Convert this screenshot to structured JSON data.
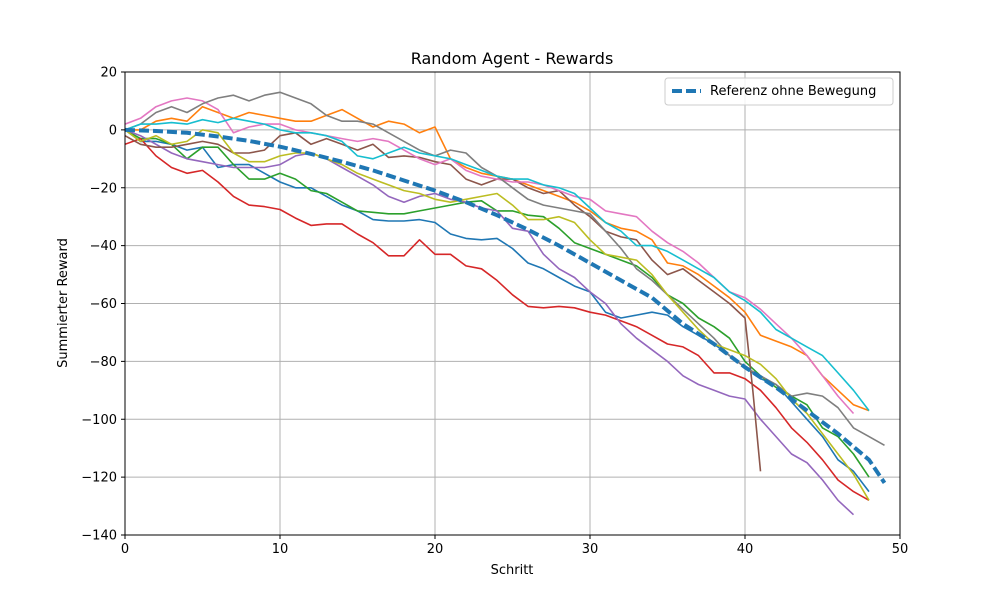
{
  "chart_data": {
    "type": "line",
    "title": "Random Agent - Rewards",
    "xlabel": "Schritt",
    "ylabel": "Summierter Reward",
    "xlim": [
      0,
      50
    ],
    "ylim": [
      -140,
      20
    ],
    "xticks": [
      0,
      10,
      20,
      30,
      40,
      50
    ],
    "yticks": [
      20,
      0,
      -20,
      -40,
      -60,
      -80,
      -100,
      -120,
      -140
    ],
    "grid": true,
    "legend": {
      "position": "top-right",
      "entries": [
        "Referenz ohne Bewegung"
      ]
    },
    "reference": {
      "name": "Referenz ohne Bewegung",
      "color": "#1f77b4",
      "style": "dashed",
      "x": [
        0,
        2,
        4,
        6,
        8,
        10,
        12,
        14,
        16,
        18,
        20,
        22,
        24,
        26,
        28,
        30,
        32,
        34,
        36,
        38,
        40,
        42,
        44,
        46,
        48,
        49
      ],
      "y": [
        0,
        -0.4,
        -1,
        -2.3,
        -3.8,
        -5.8,
        -8.3,
        -11,
        -14,
        -17.5,
        -21,
        -25,
        -29.5,
        -34.5,
        -40,
        -46,
        -52,
        -58,
        -67,
        -74,
        -82,
        -89,
        -97,
        -105,
        -114,
        -122
      ]
    },
    "series": [
      {
        "color": "#1f77b4",
        "x": [
          0,
          1,
          2,
          3,
          4,
          5,
          6,
          7,
          8,
          9,
          10,
          11,
          12,
          13,
          14,
          15,
          16,
          17,
          18,
          19,
          20,
          21,
          22,
          23,
          24,
          25,
          26,
          27,
          28,
          29,
          30,
          31,
          32,
          33,
          34,
          35,
          36,
          37,
          38,
          39,
          40,
          41,
          42,
          43,
          44,
          45,
          46,
          47,
          48
        ],
        "y": [
          0,
          -4,
          -4,
          -5,
          -7,
          -6,
          -13,
          -12,
          -12,
          -15,
          -18,
          -20,
          -20,
          -23,
          -26,
          -28,
          -31,
          -31.5,
          -31.5,
          -31,
          -32,
          -36,
          -37.5,
          -38,
          -37.5,
          -41,
          -46,
          -48,
          -51,
          -54,
          -56,
          -63,
          -65,
          -64,
          -63,
          -64,
          -68,
          -71,
          -74,
          -78,
          -82,
          -86,
          -88,
          -94,
          -100,
          -106,
          -114,
          -118,
          -125
        ]
      },
      {
        "color": "#ff7f0e",
        "x": [
          0,
          1,
          2,
          3,
          4,
          5,
          6,
          7,
          8,
          9,
          10,
          11,
          12,
          13,
          14,
          15,
          16,
          17,
          18,
          19,
          20,
          21,
          22,
          23,
          24,
          25,
          26,
          27,
          28,
          29,
          30,
          31,
          32,
          33,
          34,
          35,
          36,
          37,
          38,
          39,
          40,
          41,
          42,
          43,
          44,
          45,
          46,
          47,
          48
        ],
        "y": [
          0,
          0,
          3,
          4,
          3,
          8,
          6,
          4,
          6,
          5,
          4,
          3,
          3,
          5,
          7,
          4,
          1,
          3,
          2,
          -1,
          1,
          -10,
          -13,
          -15,
          -16,
          -17,
          -19,
          -21,
          -23,
          -25,
          -28,
          -32,
          -34,
          -35,
          -38,
          -46,
          -47,
          -50,
          -54,
          -58,
          -63,
          -71,
          -73,
          -75,
          -78,
          -85,
          -90,
          -95,
          -97
        ]
      },
      {
        "color": "#2ca02c",
        "x": [
          0,
          1,
          2,
          3,
          4,
          5,
          6,
          7,
          8,
          9,
          10,
          11,
          12,
          13,
          14,
          15,
          16,
          17,
          18,
          19,
          20,
          21,
          22,
          23,
          24,
          25,
          26,
          27,
          28,
          29,
          30,
          31,
          32,
          33,
          34,
          35,
          36,
          37,
          38,
          39,
          40,
          41,
          42,
          43,
          44,
          45,
          46,
          47,
          48
        ],
        "y": [
          0,
          -3,
          -3,
          -5,
          -10,
          -6,
          -6,
          -12,
          -17,
          -17,
          -15,
          -17,
          -21,
          -22,
          -25,
          -28,
          -28.5,
          -29,
          -29,
          -28,
          -27,
          -26,
          -25,
          -24.5,
          -28,
          -28,
          -29.5,
          -30,
          -34,
          -39,
          -41,
          -43,
          -45,
          -47,
          -51,
          -57,
          -60,
          -65,
          -68,
          -72,
          -80,
          -85,
          -89,
          -92,
          -95,
          -103,
          -106,
          -112,
          -120
        ]
      },
      {
        "color": "#d62728",
        "x": [
          0,
          1,
          2,
          3,
          4,
          5,
          6,
          7,
          8,
          9,
          10,
          11,
          12,
          13,
          14,
          15,
          16,
          17,
          18,
          19,
          20,
          21,
          22,
          23,
          24,
          25,
          26,
          27,
          28,
          29,
          30,
          31,
          32,
          33,
          34,
          35,
          36,
          37,
          38,
          39,
          40,
          41,
          42,
          43,
          44,
          45,
          46,
          47,
          48
        ],
        "y": [
          -5,
          -3,
          -9,
          -13,
          -15,
          -14,
          -18,
          -23,
          -26,
          -26.5,
          -27.5,
          -30.5,
          -33,
          -32.5,
          -32.5,
          -36,
          -39,
          -43.5,
          -43.5,
          -38,
          -43,
          -43,
          -47,
          -48,
          -52,
          -57,
          -61,
          -61.5,
          -61,
          -61.5,
          -63,
          -64,
          -66,
          -68,
          -71,
          -74,
          -75,
          -78,
          -84,
          -84,
          -86,
          -90,
          -96,
          -103,
          -108,
          -114,
          -121,
          -125,
          -128
        ]
      },
      {
        "color": "#9467bd",
        "x": [
          0,
          1,
          2,
          3,
          4,
          5,
          6,
          7,
          8,
          9,
          10,
          11,
          12,
          13,
          14,
          15,
          16,
          17,
          18,
          19,
          20,
          21,
          22,
          23,
          24,
          25,
          26,
          27,
          28,
          29,
          30,
          31,
          32,
          33,
          34,
          35,
          36,
          37,
          38,
          39,
          40,
          41,
          42,
          43,
          44,
          45,
          46,
          47
        ],
        "y": [
          0,
          -2,
          -5,
          -8,
          -10,
          -11,
          -12,
          -13,
          -13,
          -13,
          -12,
          -9,
          -8,
          -10,
          -13,
          -16,
          -19,
          -23,
          -25,
          -23,
          -22,
          -24,
          -25,
          -27,
          -28,
          -34,
          -35,
          -43,
          -48,
          -51,
          -56,
          -60,
          -67,
          -72,
          -76,
          -80,
          -85,
          -88,
          -90,
          -92,
          -93,
          -100,
          -106,
          -112,
          -115,
          -121,
          -128,
          -133
        ]
      },
      {
        "color": "#8c564b",
        "x": [
          0,
          1,
          2,
          3,
          4,
          5,
          6,
          7,
          8,
          9,
          10,
          11,
          12,
          13,
          14,
          15,
          16,
          17,
          18,
          19,
          20,
          21,
          22,
          23,
          24,
          25,
          26,
          27,
          28,
          29,
          30,
          31,
          32,
          33,
          34,
          35,
          36,
          37,
          38,
          39,
          40,
          40.5,
          41
        ],
        "y": [
          -2,
          -5,
          -6,
          -6,
          -5,
          -4,
          -5,
          -8,
          -8,
          -7,
          -2,
          -1,
          -5,
          -3,
          -5,
          -7,
          -5,
          -9.5,
          -9,
          -9.5,
          -11,
          -12,
          -17,
          -19,
          -17,
          -17,
          -20,
          -22,
          -21,
          -26,
          -30,
          -35,
          -37,
          -38,
          -45,
          -50,
          -48,
          -52,
          -56,
          -60,
          -65,
          -90,
          -118
        ]
      },
      {
        "color": "#e377c2",
        "x": [
          0,
          1,
          2,
          3,
          4,
          5,
          6,
          7,
          8,
          9,
          10,
          11,
          12,
          13,
          14,
          15,
          16,
          17,
          18,
          19,
          20,
          21,
          22,
          23,
          24,
          25,
          26,
          27,
          28,
          29,
          30,
          31,
          32,
          33,
          34,
          35,
          36,
          37,
          38,
          39,
          40,
          41,
          42,
          43,
          44,
          45,
          46,
          47
        ],
        "y": [
          2,
          4,
          8,
          10,
          11,
          10,
          7,
          -1,
          1,
          2,
          2,
          0,
          -1,
          -2,
          -3,
          -4,
          -3,
          -4,
          -7,
          -10,
          -12,
          -10,
          -14,
          -16,
          -17,
          -18,
          -18,
          -19,
          -21,
          -23,
          -24,
          -28,
          -29,
          -30,
          -35,
          -39,
          -42,
          -46,
          -51,
          -56,
          -58,
          -62,
          -67,
          -72,
          -78,
          -85,
          -92,
          -98
        ]
      },
      {
        "color": "#7f7f7f",
        "x": [
          0,
          1,
          2,
          3,
          4,
          5,
          6,
          7,
          8,
          9,
          10,
          11,
          12,
          13,
          14,
          15,
          16,
          17,
          18,
          19,
          20,
          21,
          22,
          23,
          24,
          25,
          26,
          27,
          28,
          29,
          30,
          31,
          32,
          33,
          34,
          35,
          36,
          37,
          38,
          39,
          40,
          41,
          42,
          43,
          44,
          45,
          46,
          47,
          48,
          49
        ],
        "y": [
          0,
          2,
          6,
          8,
          6,
          9,
          11,
          12,
          10,
          12,
          13,
          11,
          9,
          5,
          3,
          3,
          2,
          -1,
          -4,
          -7,
          -9,
          -7,
          -8,
          -13,
          -16,
          -20,
          -24,
          -26,
          -27,
          -28,
          -29,
          -35,
          -41,
          -48,
          -52,
          -57,
          -62,
          -67,
          -72,
          -78,
          -82,
          -85,
          -88,
          -92,
          -91,
          -92,
          -96,
          -103,
          -106,
          -109
        ]
      },
      {
        "color": "#bcbd22",
        "x": [
          0,
          1,
          2,
          3,
          4,
          5,
          6,
          7,
          8,
          9,
          10,
          11,
          12,
          13,
          14,
          15,
          16,
          17,
          18,
          19,
          20,
          21,
          22,
          23,
          24,
          25,
          26,
          27,
          28,
          29,
          30,
          31,
          32,
          33,
          34,
          35,
          36,
          37,
          38,
          39,
          40,
          41,
          42,
          43,
          44,
          45,
          46,
          47,
          48
        ],
        "y": [
          0,
          -4,
          -2,
          -5,
          -4,
          0,
          -1,
          -8,
          -11,
          -11,
          -9,
          -8,
          -8,
          -10,
          -12,
          -15,
          -17,
          -19,
          -21,
          -22,
          -24,
          -25,
          -24,
          -23,
          -22,
          -26,
          -31,
          -31,
          -30,
          -32,
          -38,
          -43,
          -44,
          -45,
          -50,
          -57,
          -63,
          -69,
          -74,
          -76,
          -78,
          -81,
          -86,
          -93,
          -98,
          -105,
          -112,
          -119,
          -128
        ]
      },
      {
        "color": "#17becf",
        "x": [
          0,
          1,
          2,
          3,
          4,
          5,
          6,
          7,
          8,
          9,
          10,
          11,
          12,
          13,
          14,
          15,
          16,
          17,
          18,
          19,
          20,
          21,
          22,
          23,
          24,
          25,
          26,
          27,
          28,
          29,
          30,
          31,
          32,
          33,
          34,
          35,
          36,
          37,
          38,
          39,
          40,
          41,
          42,
          43,
          44,
          45,
          46,
          47,
          48
        ],
        "y": [
          0,
          2,
          2,
          2.5,
          2,
          3.5,
          2.5,
          4,
          3,
          2,
          0,
          -1,
          -1,
          -2,
          -4,
          -9,
          -10,
          -8,
          -6,
          -8,
          -9,
          -10,
          -12,
          -14,
          -16,
          -17,
          -17,
          -19,
          -20,
          -22,
          -27,
          -32,
          -35,
          -40,
          -40,
          -42,
          -45,
          -48,
          -51,
          -56,
          -59,
          -63,
          -69,
          -72,
          -75,
          -78,
          -84,
          -90,
          -97
        ]
      }
    ]
  }
}
